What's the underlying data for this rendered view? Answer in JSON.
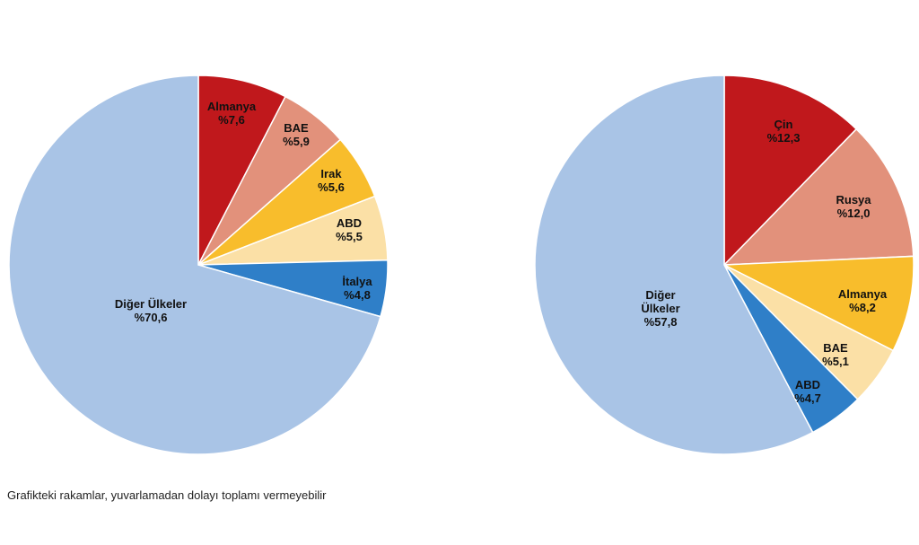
{
  "chart_data": [
    {
      "type": "pie",
      "start_angle_deg": 0,
      "direction": "clockwise",
      "slices": [
        {
          "label": "Almanya",
          "value_label": "%7,6",
          "value": 7.6,
          "color": "#c0181c"
        },
        {
          "label": "BAE",
          "value_label": "%5,9",
          "value": 5.9,
          "color": "#e2917b"
        },
        {
          "label": "Irak",
          "value_label": "%5,6",
          "value": 5.6,
          "color": "#f8bd2c"
        },
        {
          "label": "ABD",
          "value_label": "%5,5",
          "value": 5.5,
          "color": "#fbe0a6"
        },
        {
          "label": "İtalya",
          "value_label": "%4,8",
          "value": 4.8,
          "color": "#2f7fc8"
        },
        {
          "label": "Diğer Ülkeler",
          "value_label": "%70,6",
          "value": 70.6,
          "color": "#a9c4e6"
        }
      ]
    },
    {
      "type": "pie",
      "start_angle_deg": 0,
      "direction": "clockwise",
      "slices": [
        {
          "label": "Çin",
          "value_label": "%12,3",
          "value": 12.3,
          "color": "#c0181c"
        },
        {
          "label": "Rusya",
          "value_label": "%12,0",
          "value": 12.0,
          "color": "#e2917b"
        },
        {
          "label": "Almanya",
          "value_label": "%8,2",
          "value": 8.2,
          "color": "#f8bd2c"
        },
        {
          "label": "BAE",
          "value_label": "%5,1",
          "value": 5.1,
          "color": "#fbe0a6"
        },
        {
          "label": "ABD",
          "value_label": "%4,7",
          "value": 4.7,
          "color": "#2f7fc8"
        },
        {
          "label": "Diğer Ülkeler",
          "value_label": "%57,8",
          "value": 57.8,
          "color": "#a9c4e6"
        }
      ]
    }
  ],
  "footnote": "Grafikteki rakamlar, yuvarlamadan dolayı toplamı vermeyebilir"
}
